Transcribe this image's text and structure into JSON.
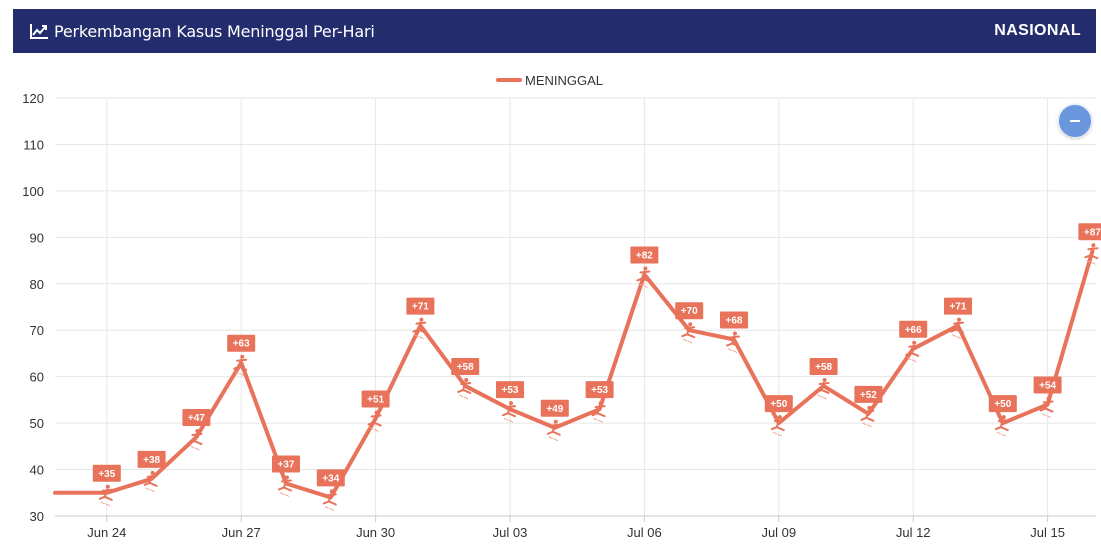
{
  "header": {
    "title": "Perkembangan Kasus Meninggal Per-Hari",
    "scope": "NASIONAL",
    "title_icon": "line-chart-icon",
    "background": "#232d6e"
  },
  "controls": {
    "zoom_button_icon": "minus-icon",
    "zoom_button_color": "#6a96de"
  },
  "chart_data": {
    "type": "line",
    "title": "Perkembangan Kasus Meninggal Per-Hari",
    "x": [
      "Jun 23",
      "Jun 24",
      "Jun 25",
      "Jun 26",
      "Jun 27",
      "Jun 28",
      "Jun 29",
      "Jun 30",
      "Jul 01",
      "Jul 02",
      "Jul 03",
      "Jul 04",
      "Jul 05",
      "Jul 06",
      "Jul 07",
      "Jul 08",
      "Jul 09",
      "Jul 10",
      "Jul 11",
      "Jul 12",
      "Jul 13",
      "Jul 14",
      "Jul 15",
      "Jul 16"
    ],
    "x_ticks": [
      "Jun 24",
      "Jun 27",
      "Jun 30",
      "Jul 03",
      "Jul 06",
      "Jul 09",
      "Jul 12",
      "Jul 15"
    ],
    "series": [
      {
        "name": "MENINGGAL",
        "color": "#e8735a",
        "values": [
          35,
          35,
          38,
          47,
          63,
          37,
          34,
          51,
          71,
          58,
          53,
          49,
          53,
          82,
          70,
          68,
          50,
          58,
          52,
          66,
          71,
          50,
          54,
          87
        ],
        "data_labels": [
          null,
          "+35",
          "+38",
          "+47",
          "+63",
          "+37",
          "+34",
          "+51",
          "+71",
          "+58",
          "+53",
          "+49",
          "+53",
          "+82",
          "+70",
          "+68",
          "+50",
          "+58",
          "+52",
          "+66",
          "+71",
          "+50",
          "+54",
          "+87"
        ]
      }
    ],
    "y_ticks": [
      30,
      40,
      50,
      60,
      70,
      80,
      90,
      100,
      110,
      120
    ],
    "ylim": [
      30,
      120
    ],
    "grid": true,
    "legend_position": "top-center",
    "xlabel": "",
    "ylabel": ""
  }
}
